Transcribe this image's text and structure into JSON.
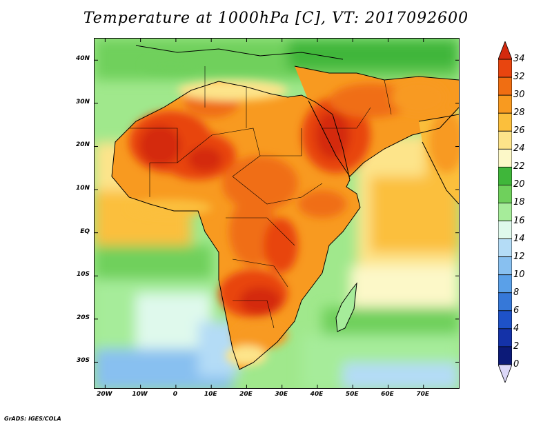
{
  "title": "Temperature at 1000hPa [C], VT: 2017092600",
  "credit": "GrADS: IGES/COLA",
  "map": {
    "lon_range": [
      -23,
      80
    ],
    "lat_range": [
      -36,
      45
    ],
    "lat_ticks": [
      {
        "value": 40,
        "label": "40N"
      },
      {
        "value": 30,
        "label": "30N"
      },
      {
        "value": 20,
        "label": "20N"
      },
      {
        "value": 10,
        "label": "10N"
      },
      {
        "value": 0,
        "label": "EQ"
      },
      {
        "value": -10,
        "label": "10S"
      },
      {
        "value": -20,
        "label": "20S"
      },
      {
        "value": -30,
        "label": "30S"
      }
    ],
    "lon_ticks": [
      {
        "value": -20,
        "label": "20W"
      },
      {
        "value": -10,
        "label": "10W"
      },
      {
        "value": 0,
        "label": "0"
      },
      {
        "value": 10,
        "label": "10E"
      },
      {
        "value": 20,
        "label": "20E"
      },
      {
        "value": 30,
        "label": "30E"
      },
      {
        "value": 40,
        "label": "40E"
      },
      {
        "value": 50,
        "label": "50E"
      },
      {
        "value": 60,
        "label": "60E"
      },
      {
        "value": 70,
        "label": "70E"
      }
    ]
  },
  "colorbar": {
    "levels": [
      "34",
      "32",
      "30",
      "28",
      "26",
      "24",
      "22",
      "20",
      "18",
      "16",
      "14",
      "12",
      "10",
      "8",
      "6",
      "4",
      "2",
      "0"
    ],
    "colors_top_to_bottom": [
      "#d42a0e",
      "#e8450f",
      "#f06e12",
      "#f89a20",
      "#fbbf3c",
      "#fde48a",
      "#fcf8c8",
      "#3fb63a",
      "#6fd05c",
      "#a6ec9a",
      "#dff9ec",
      "#b4dcf6",
      "#88c0f0",
      "#5aa0e8",
      "#3678d8",
      "#1e52c8",
      "#1432a8",
      "#0c1a78",
      "#dcd8f8"
    ]
  }
}
